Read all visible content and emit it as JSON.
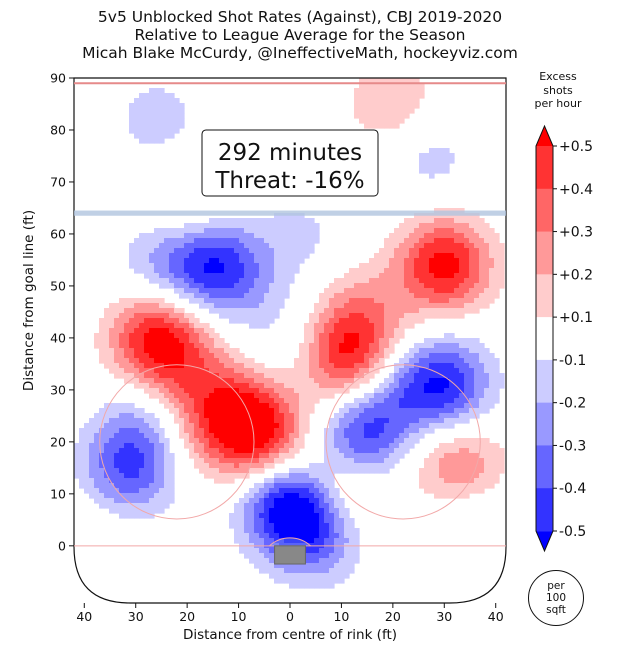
{
  "header": {
    "line1": "5v5 Unblocked Shot Rates (Against), CBJ 2019-2020",
    "line2": "Relative to League Average for the Season",
    "line3": "Micah Blake McCurdy, @IneffectiveMath, hockeyviz.com"
  },
  "annotation": {
    "line1": "292 minutes",
    "line2": "Threat: -16%"
  },
  "colorbar": {
    "title_line1": "Excess",
    "title_line2": "shots",
    "title_line3": "per hour",
    "ticks": [
      "+0.5",
      "+0.4",
      "+0.3",
      "+0.2",
      "+0.1",
      "-0.1",
      "-0.2",
      "-0.3",
      "-0.4",
      "-0.5"
    ],
    "colors": [
      "#ff0000",
      "#ff3333",
      "#ff6666",
      "#ff9999",
      "#ffcccc",
      "#ffffff",
      "#ccccff",
      "#9999ff",
      "#6666ff",
      "#3333ff",
      "#0000ff"
    ]
  },
  "unit_badge": {
    "line1": "per",
    "line2": "100",
    "line3": "sqft"
  },
  "chart_data": {
    "type": "heatmap",
    "xlabel": "Distance from centre of rink (ft)",
    "ylabel": "Distance from goal line (ft)",
    "xlim": [
      -42,
      42
    ],
    "ylim": [
      -11,
      90
    ],
    "xticks": [
      -40,
      -30,
      -20,
      -10,
      0,
      10,
      20,
      30,
      40
    ],
    "xtick_labels": [
      "40",
      "30",
      "20",
      "10",
      "0",
      "10",
      "20",
      "30",
      "40"
    ],
    "yticks": [
      0,
      10,
      20,
      30,
      40,
      50,
      60,
      70,
      80,
      90
    ],
    "ytick_labels": [
      "0",
      "10",
      "20",
      "30",
      "40",
      "50",
      "60",
      "70",
      "80",
      "90"
    ],
    "scale_min": -0.5,
    "scale_max": 0.5,
    "levels": [
      -0.5,
      -0.4,
      -0.3,
      -0.2,
      -0.1,
      0.1,
      0.2,
      0.3,
      0.4,
      0.5
    ],
    "blobs": [
      {
        "x": 30,
        "y": 54,
        "value": 0.55
      },
      {
        "x": 11,
        "y": 36,
        "value": 0.5
      },
      {
        "x": 14,
        "y": 45,
        "value": 0.22
      },
      {
        "x": -26,
        "y": 40,
        "value": 0.52
      },
      {
        "x": -20,
        "y": 33,
        "value": 0.2
      },
      {
        "x": -6,
        "y": 21,
        "value": 0.5
      },
      {
        "x": -10,
        "y": 27,
        "value": 0.25
      },
      {
        "x": -17,
        "y": 23,
        "value": 0.2
      },
      {
        "x": 33,
        "y": 15,
        "value": 0.32
      },
      {
        "x": 10,
        "y": 12,
        "value": 0.32
      },
      {
        "x": 20,
        "y": 85,
        "value": 0.2
      },
      {
        "x": -2,
        "y": 78,
        "value": 0.1
      },
      {
        "x": -20,
        "y": 65,
        "value": 0.18
      },
      {
        "x": 22,
        "y": 22,
        "value": 0.1
      },
      {
        "x": -38,
        "y": 5,
        "value": 0.1
      },
      {
        "x": 0,
        "y": 8,
        "value": -0.58
      },
      {
        "x": 5,
        "y": 2,
        "value": -0.3
      },
      {
        "x": 30,
        "y": 31,
        "value": -0.48
      },
      {
        "x": 14,
        "y": 20,
        "value": -0.48
      },
      {
        "x": 20,
        "y": 28,
        "value": -0.25
      },
      {
        "x": -15,
        "y": 54,
        "value": -0.45
      },
      {
        "x": -25,
        "y": 55,
        "value": -0.2
      },
      {
        "x": -32,
        "y": 14,
        "value": -0.38
      },
      {
        "x": -28,
        "y": 23,
        "value": -0.22
      },
      {
        "x": 27,
        "y": 75,
        "value": -0.15
      },
      {
        "x": -26,
        "y": 82,
        "value": -0.15
      },
      {
        "x": 35,
        "y": 5,
        "value": -0.15
      },
      {
        "x": -8,
        "y": 50,
        "value": -0.1
      },
      {
        "x": 0,
        "y": 38,
        "value": -0.12
      },
      {
        "x": 2,
        "y": 60,
        "value": -0.12
      }
    ]
  }
}
